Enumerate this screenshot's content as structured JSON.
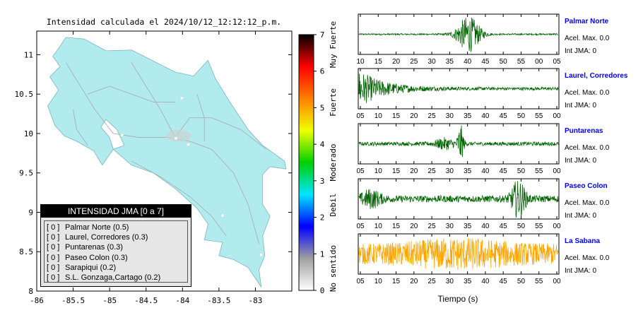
{
  "map": {
    "title": "Intensidad calculada el 2024/10/12_12:12:12_p.m.",
    "xaxis": {
      "ticks": [
        "-86",
        "-85.5",
        "-85",
        "-84.5",
        "-84",
        "-83.5",
        "-83"
      ],
      "range": [
        -86,
        -82.5
      ]
    },
    "yaxis": {
      "ticks": [
        "11",
        "10.5",
        "10",
        "9.5",
        "9",
        "8.5",
        "8"
      ],
      "range": [
        8,
        11.3
      ]
    },
    "land_color": "#b2ebee",
    "stations": [
      {
        "name": "Palmar Norte",
        "lon": -83.45,
        "lat": 8.96
      },
      {
        "name": "Laurel, Corredores",
        "lon": -82.92,
        "lat": 8.46
      },
      {
        "name": "Puntarenas",
        "lon": -84.83,
        "lat": 9.98
      },
      {
        "name": "Paseo Colon",
        "lon": -84.09,
        "lat": 9.94
      },
      {
        "name": "Sarapiqui",
        "lon": -84.01,
        "lat": 10.45
      },
      {
        "name": "S.L. Gonzaga,Cartago",
        "lon": -83.92,
        "lat": 9.86
      }
    ]
  },
  "legend": {
    "title": "INTENSIDAD JMA [0 a 7]",
    "items": [
      {
        "value": "[ 0 ]",
        "label": "Palmar Norte (0.5)"
      },
      {
        "value": "[ 0 ]",
        "label": "Laurel, Corredores (0.3)"
      },
      {
        "value": "[ 0 ]",
        "label": "Puntarenas (0.3)"
      },
      {
        "value": "[ 0 ]",
        "label": "Paseo Colon (0.3)"
      },
      {
        "value": "[ 0 ]",
        "label": "Sarapiqui (0.2)"
      },
      {
        "value": "[ 0 ]",
        "label": "S.L. Gonzaga,Cartago (0.2)"
      }
    ]
  },
  "colorbar": {
    "ticks": [
      "0",
      "1",
      "2",
      "3",
      "4",
      "5",
      "6",
      "7"
    ],
    "categories": [
      "No sentido",
      "Debil",
      "Moderado",
      "Fuerte",
      "Muy Fuerte"
    ],
    "stops": [
      "#ffffff",
      "#a0a0a0",
      "#0000ff",
      "#00e5ff",
      "#00d000",
      "#f0ff00",
      "#ff8000",
      "#ff0000",
      "#000000"
    ]
  },
  "chart_data": {
    "type": "line",
    "xlabel": "Tiempo (s)",
    "time_ticks": [
      "05",
      "10",
      "15",
      "20",
      "25",
      "30",
      "35",
      "40",
      "45",
      "50",
      "55",
      "00"
    ],
    "panel1_time_ticks": [
      "10",
      "15",
      "20",
      "25",
      "30",
      "35",
      "40",
      "45",
      "50",
      "55",
      "00",
      "05"
    ],
    "series": [
      {
        "name": "Palmar Norte",
        "accel_label": "Acel. Max. 0.0",
        "int_label": "Int JMA: 0",
        "color": "#006400",
        "noise": 0.04,
        "bursts": [
          {
            "center": 0.55,
            "width": 0.06,
            "amp": 0.95
          }
        ]
      },
      {
        "name": "Laurel, Corredores",
        "accel_label": "Acel. Max. 0.0",
        "int_label": "Int JMA: 0",
        "color": "#006400",
        "noise": 0.08,
        "decay": {
          "start": 0.0,
          "amp": 0.95,
          "rate": 0.12
        }
      },
      {
        "name": "Puntarenas",
        "accel_label": "Acel. Max. 0.0",
        "int_label": "Int JMA: 0",
        "color": "#006400",
        "noise": 0.1,
        "bursts": [
          {
            "center": 0.51,
            "width": 0.015,
            "amp": 0.95
          },
          {
            "center": 0.43,
            "width": 0.05,
            "amp": 0.25
          }
        ]
      },
      {
        "name": "Paseo Colon",
        "accel_label": "Acel. Max. 0.0",
        "int_label": "Int JMA: 0",
        "color": "#006400",
        "noise": 0.18,
        "bursts": [
          {
            "center": 0.8,
            "width": 0.035,
            "amp": 0.95
          },
          {
            "center": 0.06,
            "width": 0.05,
            "amp": 0.4
          }
        ]
      },
      {
        "name": "La Sabana",
        "accel_label": "Acel. Max. 0.0",
        "int_label": "Int JMA: 0",
        "color": "#ffa500",
        "noise": 0.55,
        "bursts": [
          {
            "center": 0.5,
            "width": 0.25,
            "amp": 0.35
          }
        ]
      }
    ]
  }
}
